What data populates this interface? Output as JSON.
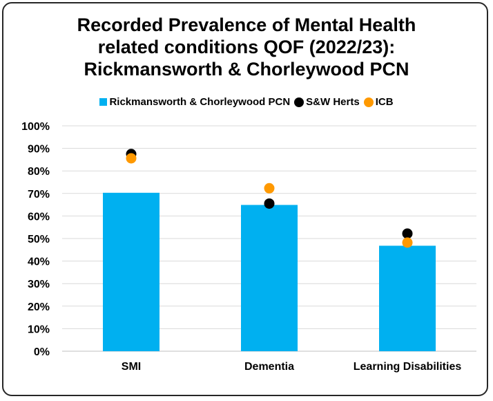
{
  "chart_data": {
    "type": "bar",
    "title_lines": [
      "Recorded Prevalence of Mental Health",
      "related conditions QOF (2022/23):",
      "Rickmansworth & Chorleywood PCN"
    ],
    "categories": [
      "SMI",
      "Dementia",
      "Learning Disabilities"
    ],
    "series": [
      {
        "name": "Rickmansworth & Chorleywood PCN",
        "kind": "bar",
        "color": "#00B0F0",
        "values": [
          70.3,
          64.9,
          46.8
        ]
      },
      {
        "name": "S&W Herts",
        "kind": "marker",
        "color": "#000000",
        "values": [
          87.5,
          65.5,
          52.2
        ]
      },
      {
        "name": "ICB",
        "kind": "marker",
        "color": "#FF9900",
        "values": [
          85.6,
          72.3,
          48.2
        ]
      }
    ],
    "y_ticks": [
      "0%",
      "10%",
      "20%",
      "30%",
      "40%",
      "50%",
      "60%",
      "70%",
      "80%",
      "90%",
      "100%"
    ],
    "ylim": [
      0,
      100
    ],
    "y_unit": "%",
    "grid": true,
    "legend_position": "top"
  }
}
